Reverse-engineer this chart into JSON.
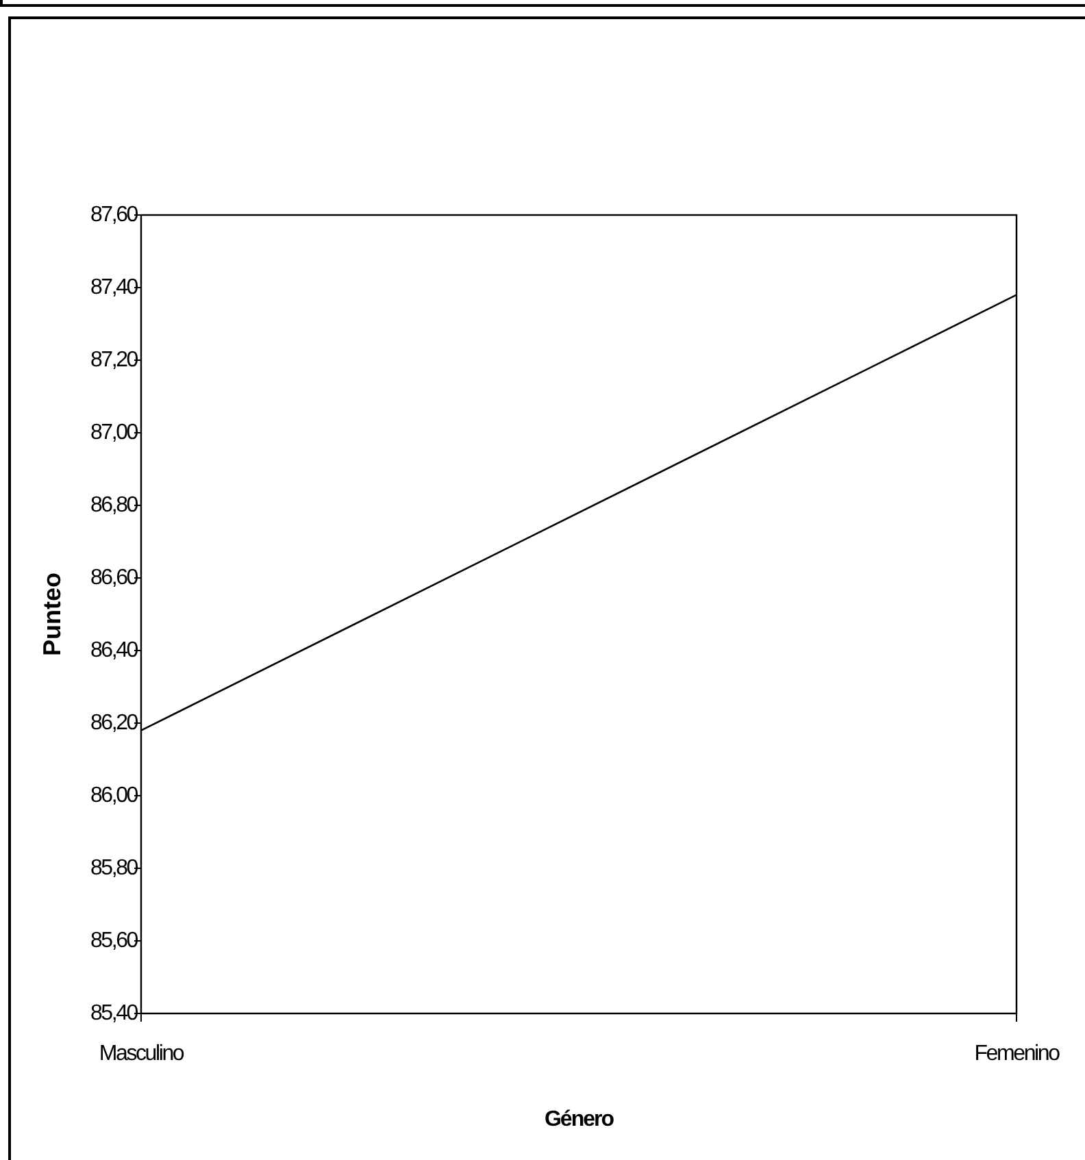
{
  "chart_data": {
    "type": "line",
    "xlabel": "Género",
    "ylabel": "Punteo",
    "categories": [
      "Masculino",
      "Femenino"
    ],
    "values": [
      86.18,
      87.38
    ],
    "color": "#000000",
    "marker": "none",
    "line_style": "solid",
    "grid": false,
    "ylim": [
      85.4,
      87.6
    ],
    "yticks": [
      {
        "value": 85.4,
        "label": "85,40"
      },
      {
        "value": 85.6,
        "label": "85,60"
      },
      {
        "value": 85.8,
        "label": "85,80"
      },
      {
        "value": 86.0,
        "label": "86,00"
      },
      {
        "value": 86.2,
        "label": "86,20"
      },
      {
        "value": 86.4,
        "label": "86,40"
      },
      {
        "value": 86.6,
        "label": "86,60"
      },
      {
        "value": 86.8,
        "label": "86,80"
      },
      {
        "value": 87.0,
        "label": "87,00"
      },
      {
        "value": 87.2,
        "label": "87,20"
      },
      {
        "value": 87.4,
        "label": "87,40"
      },
      {
        "value": 87.6,
        "label": "87,60"
      }
    ]
  }
}
